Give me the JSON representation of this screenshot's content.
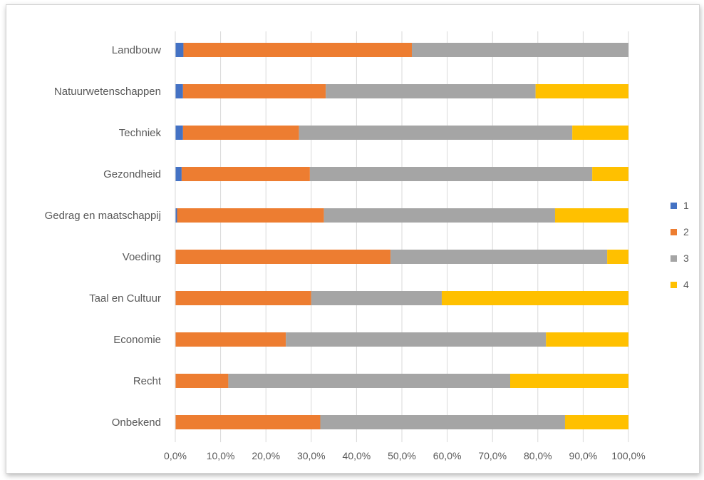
{
  "chart_data": {
    "type": "bar",
    "orientation": "horizontal",
    "stacked": "100%",
    "categories": [
      "Landbouw",
      "Natuurwetenschappen",
      "Techniek",
      "Gezondheid",
      "Gedrag en maatschappij",
      "Voeding",
      "Taal en Cultuur",
      "Economie",
      "Recht",
      "Onbekend"
    ],
    "series": [
      {
        "name": "1",
        "color": "#4472C4",
        "values": [
          1.8,
          1.7,
          1.7,
          1.4,
          0.4,
          0,
          0,
          0,
          0,
          0
        ]
      },
      {
        "name": "2",
        "color": "#ED7D31",
        "values": [
          50.4,
          31.5,
          25.6,
          28.3,
          32.4,
          47.5,
          30.0,
          24.4,
          11.7,
          32.0
        ]
      },
      {
        "name": "3",
        "color": "#A5A5A5",
        "values": [
          47.8,
          46.3,
          60.3,
          62.3,
          51.0,
          47.8,
          28.8,
          57.4,
          62.2,
          54.0
        ]
      },
      {
        "name": "4",
        "color": "#FFC000",
        "values": [
          0,
          20.5,
          12.4,
          8.0,
          16.2,
          4.7,
          41.2,
          18.2,
          26.1,
          14.0
        ]
      }
    ],
    "x_ticks": [
      "0,0%",
      "10,0%",
      "20,0%",
      "30,0%",
      "40,0%",
      "50,0%",
      "60,0%",
      "70,0%",
      "80,0%",
      "90,0%",
      "100,0%"
    ],
    "xlim": [
      0,
      100
    ],
    "grid": true,
    "legend": "right",
    "title": "",
    "xlabel": "",
    "ylabel": ""
  }
}
